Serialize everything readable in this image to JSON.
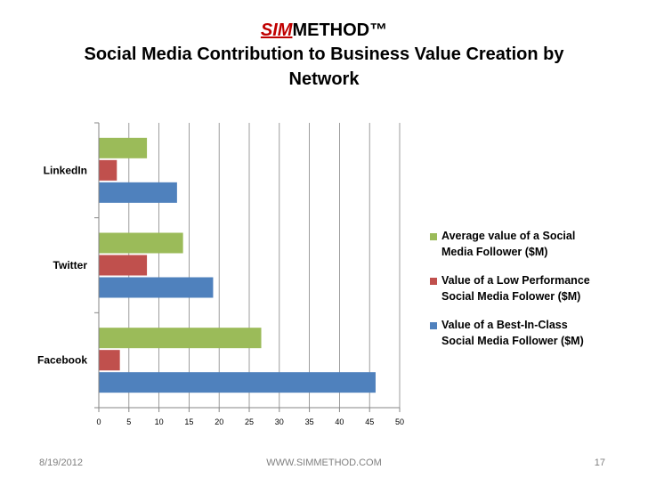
{
  "slide": {
    "brand_accent": "SIM",
    "brand_rest": "METHOD™",
    "title": "Social Media Contribution to Business Value Creation by Network",
    "footer_date": "8/19/2012",
    "footer_site": "WWW.SIMMETHOD.COM",
    "page_number": "17"
  },
  "chart_data": {
    "type": "bar",
    "orientation": "horizontal",
    "title": "Social Media Contribution to Business Value Creation by Network",
    "categories": [
      "LinkedIn",
      "Twitter",
      "Facebook"
    ],
    "series": [
      {
        "name": "Average value of a Social Media Follower ($M)",
        "color": "#9bbb59",
        "values": [
          8,
          14,
          27
        ]
      },
      {
        "name": "Value of a Low Performance Social Media Folower ($M)",
        "color": "#c0504d",
        "values": [
          3,
          8,
          3.5
        ]
      },
      {
        "name": "Value of a Best-In-Class Social Media Follower ($M)",
        "color": "#4f81bd",
        "values": [
          13,
          19,
          46
        ]
      }
    ],
    "xlim": [
      0,
      50
    ],
    "xticks": [
      0,
      5,
      10,
      15,
      20,
      25,
      30,
      35,
      40,
      45,
      50
    ],
    "grid": true,
    "legend_position": "right",
    "legend_lines": [
      [
        "Average value of a Social",
        "Media Follower ($M)"
      ],
      [
        "Value of a Low Performance",
        "Social Media Folower ($M)"
      ],
      [
        "Value of a Best-In-Class",
        "Social Media Follower ($M)"
      ]
    ]
  }
}
